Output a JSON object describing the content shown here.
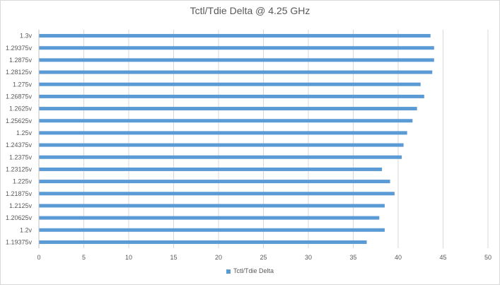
{
  "chart_data": {
    "type": "bar",
    "orientation": "horizontal",
    "title": "Tctl/Tdie Delta @ 4.25 GHz",
    "categories": [
      "1.3v",
      "1.29375v",
      "1.2875v",
      "1.28125v",
      "1.275v",
      "1.26875v",
      "1.2625v",
      "1.25625v",
      "1.25v",
      "1.24375v",
      "1.2375v",
      "1.23125v",
      "1.225v",
      "1.21875v",
      "1.2125v",
      "1.20625v",
      "1.2v",
      "1.19375v"
    ],
    "series": [
      {
        "name": "Tctl/Tdie Delta",
        "color": "#5b9bd5",
        "values": [
          43.6,
          44.0,
          44.0,
          43.8,
          42.5,
          42.9,
          42.1,
          41.6,
          41.0,
          40.6,
          40.4,
          38.2,
          39.1,
          39.6,
          38.5,
          37.9,
          38.5,
          36.5
        ]
      }
    ],
    "xlim": [
      0,
      50
    ],
    "xticks": [
      "0",
      "5",
      "10",
      "15",
      "20",
      "25",
      "30",
      "35",
      "40",
      "45",
      "50"
    ],
    "grid": true,
    "legend_position": "bottom"
  }
}
